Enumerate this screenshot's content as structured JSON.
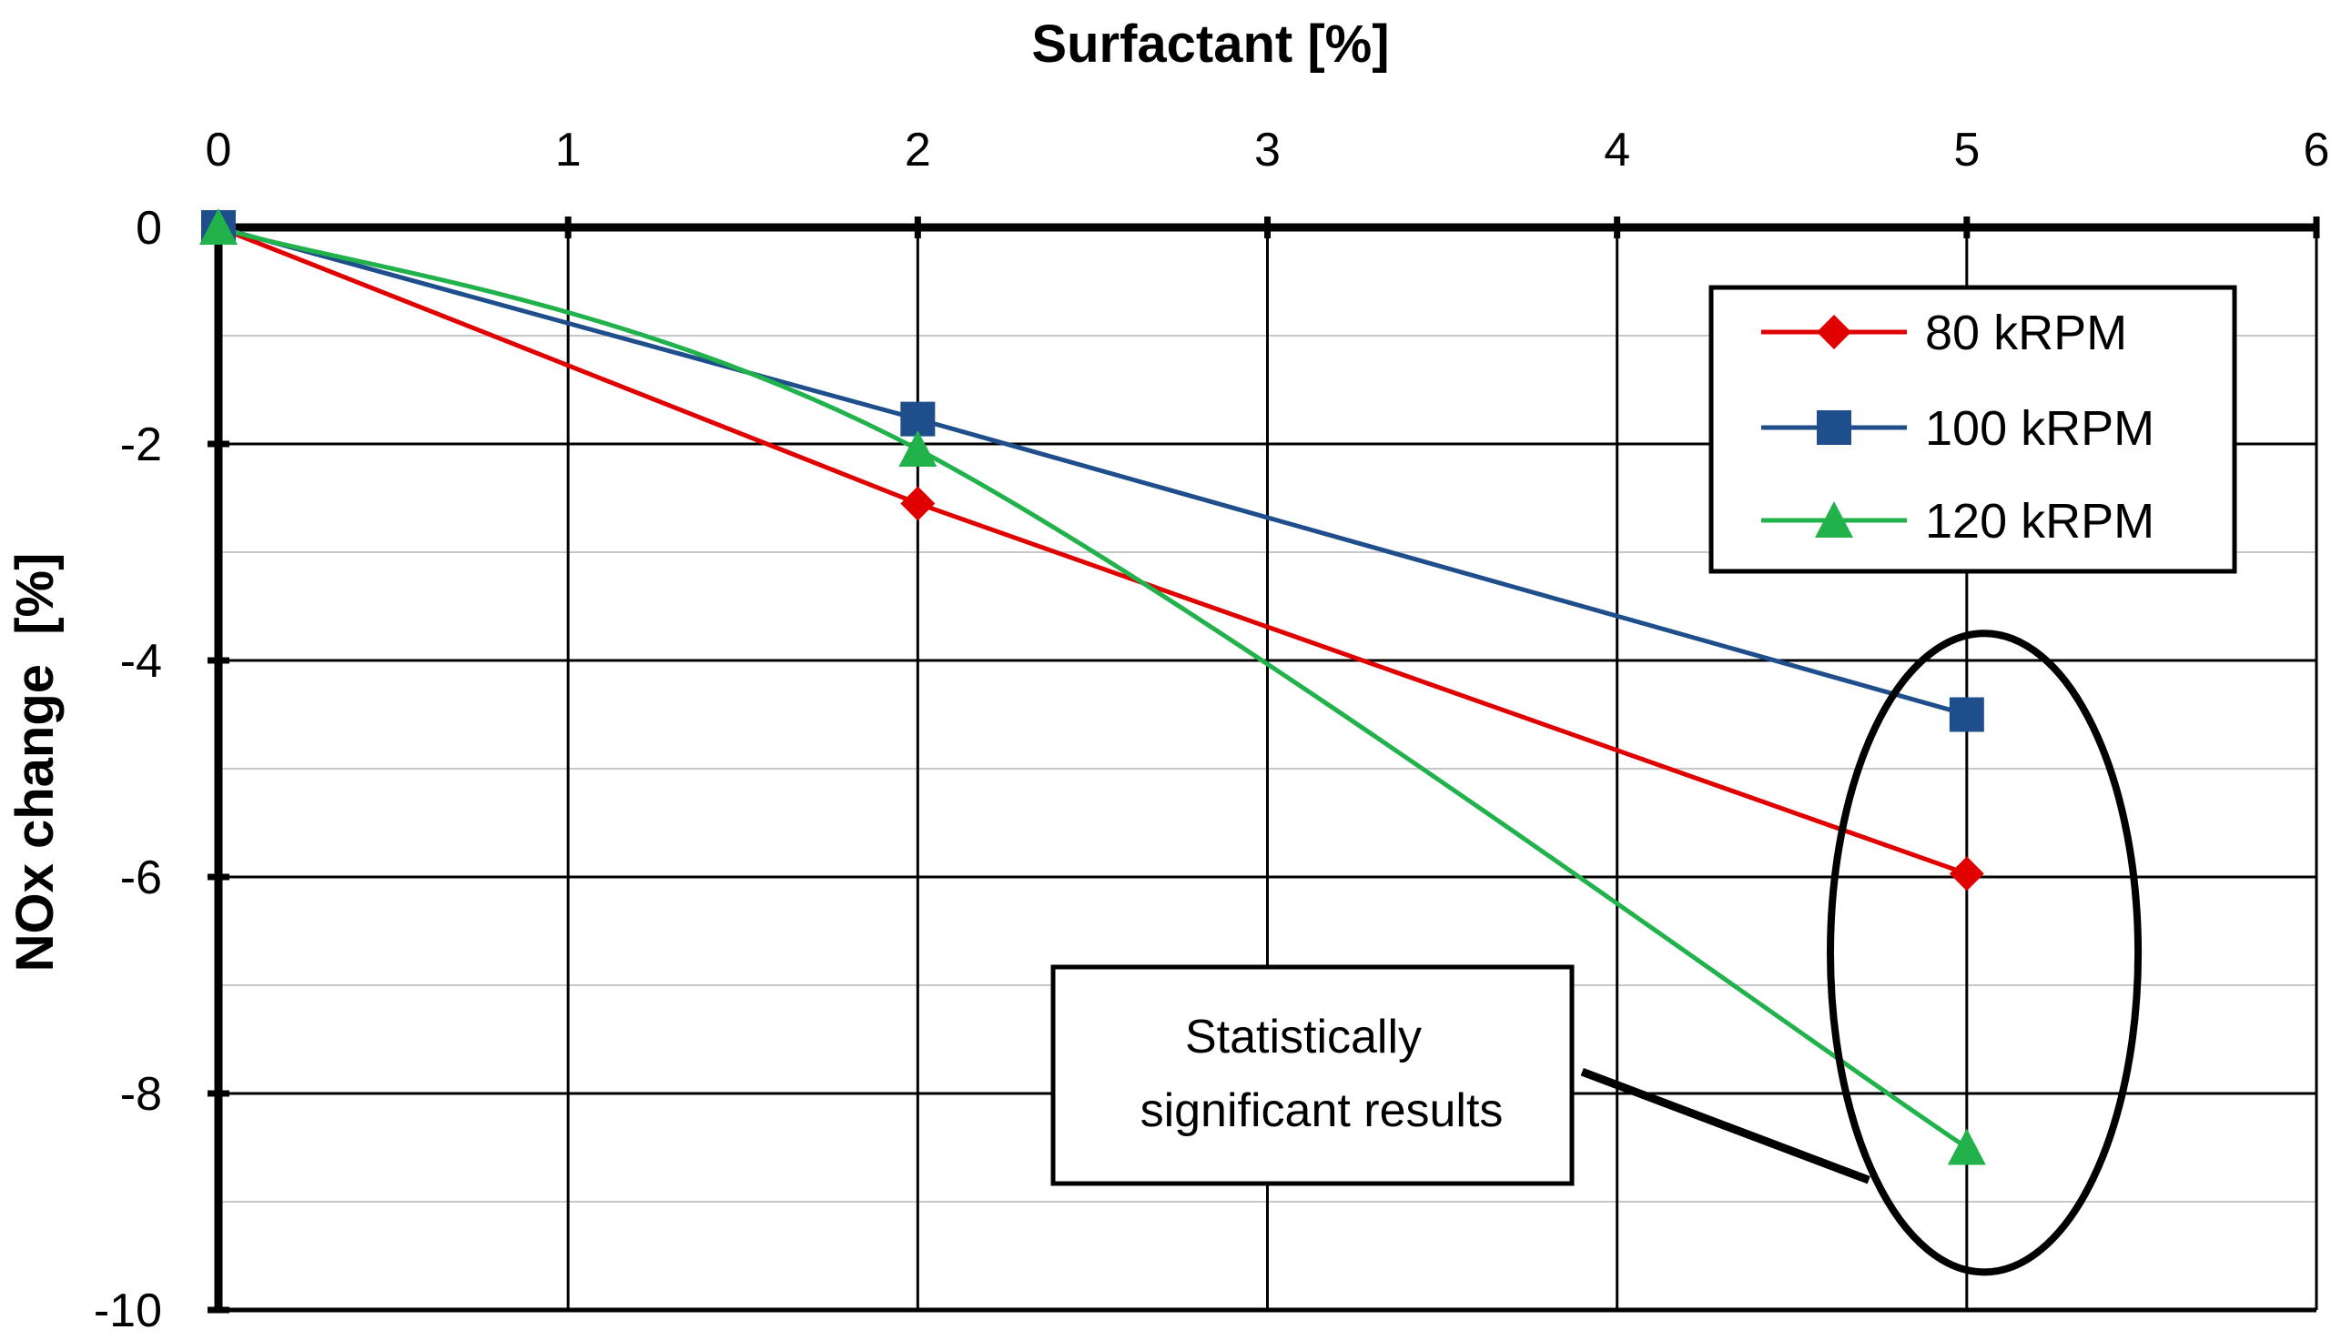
{
  "chart_data": {
    "type": "line",
    "xlabel": "Surfactant [%]",
    "ylabel": "NOx change  [%]",
    "xlim": [
      0,
      6
    ],
    "ylim": [
      -10,
      0
    ],
    "x_ticks": [
      0,
      1,
      2,
      3,
      4,
      5,
      6
    ],
    "x_tick_labels": [
      "0",
      "1",
      "2",
      "3",
      "4",
      "5",
      "6"
    ],
    "y_ticks": [
      0,
      -2,
      -4,
      -6,
      -8,
      -10
    ],
    "y_tick_labels": [
      "0",
      "-2",
      "-4",
      "-6",
      "-8",
      "-10"
    ],
    "y_minor_ticks": [
      -1,
      -3,
      -5,
      -7,
      -9
    ],
    "legend_position": "top-right",
    "series": [
      {
        "name": "80 kRPM",
        "label": "80 kRPM",
        "color": "#e00000",
        "marker": "diamond",
        "curve": "straight",
        "x": [
          0,
          2,
          5
        ],
        "values": [
          0,
          -2.55,
          -5.97
        ]
      },
      {
        "name": "100 kRPM",
        "label": "100 kRPM",
        "color": "#1f4e8c",
        "marker": "square",
        "curve": "straight",
        "x": [
          0,
          2,
          5
        ],
        "values": [
          0,
          -1.77,
          -4.5
        ]
      },
      {
        "name": "120 kRPM",
        "label": "120 kRPM",
        "color": "#22b24c",
        "marker": "triangle",
        "curve": "smooth",
        "x": [
          0,
          2,
          5
        ],
        "values": [
          0,
          -2.05,
          -8.5
        ]
      }
    ],
    "annotation": {
      "line1": "Statistically",
      "line2": "significant results",
      "ellipse_center": [
        5.05,
        -6.7
      ],
      "ellipse_radius": [
        0.44,
        2.95
      ],
      "pointer_from": [
        3.9,
        -7.8
      ],
      "pointer_to": [
        4.72,
        -8.8
      ]
    }
  }
}
